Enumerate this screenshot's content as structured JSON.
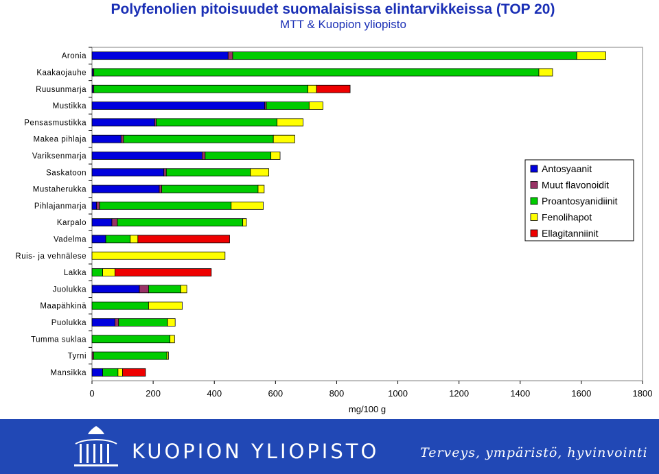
{
  "chart_data": {
    "type": "bar",
    "orientation": "horizontal",
    "stacked": true,
    "title": "Polyfenolien pitoisuudet suomalaisissa elintarvikkeissa (TOP 20)",
    "subtitle": "MTT & Kuopion yliopisto",
    "xlabel": "mg/100 g",
    "ylabel": "",
    "xlim": [
      0,
      1800
    ],
    "xticks": [
      0,
      200,
      400,
      600,
      800,
      1000,
      1200,
      1400,
      1600,
      1800
    ],
    "legend_position": "right",
    "categories": [
      "Aronia",
      "Kaakaojauhe",
      "Ruusunmarja",
      "Mustikka",
      "Pensasmustikka",
      "Makea pihlaja",
      "Variksenmarja",
      "Saskatoon",
      "Mustaherukka",
      "Pihlajanmarja",
      "Karpalo",
      "Vadelma",
      "Ruis- ja vehnälese",
      "Lakka",
      "Juolukka",
      "Maapähkinä",
      "Puolukka",
      "Tumma suklaa",
      "Tyrni",
      "Mansikka"
    ],
    "series": [
      {
        "name": "Antosyaanit",
        "color": "#0000dd",
        "values": [
          445,
          3,
          3,
          565,
          205,
          95,
          360,
          235,
          220,
          15,
          65,
          45,
          0,
          0,
          155,
          0,
          75,
          0,
          0,
          35
        ]
      },
      {
        "name": "Muut flavonoidit",
        "color": "#993366",
        "values": [
          15,
          3,
          3,
          5,
          5,
          8,
          10,
          8,
          8,
          10,
          18,
          0,
          0,
          0,
          30,
          0,
          12,
          0,
          5,
          0
        ]
      },
      {
        "name": "Proantosyanidiinit",
        "color": "#00cc00",
        "values": [
          1125,
          1455,
          700,
          140,
          395,
          490,
          215,
          275,
          315,
          430,
          410,
          80,
          0,
          35,
          105,
          185,
          160,
          255,
          240,
          50
        ]
      },
      {
        "name": "Fenolihapot",
        "color": "#ffff00",
        "values": [
          95,
          45,
          28,
          45,
          85,
          70,
          30,
          60,
          20,
          105,
          12,
          25,
          435,
          40,
          20,
          110,
          25,
          15,
          5,
          15
        ]
      },
      {
        "name": "Ellagitanniinit",
        "color": "#ee0000",
        "values": [
          0,
          0,
          110,
          0,
          0,
          0,
          0,
          0,
          0,
          0,
          0,
          300,
          0,
          315,
          0,
          0,
          0,
          0,
          0,
          75
        ]
      }
    ]
  },
  "footer": {
    "logo_text": "KUOPION YLIOPISTO",
    "slogan": "Terveys, ympäristö, hyvinvointi"
  }
}
